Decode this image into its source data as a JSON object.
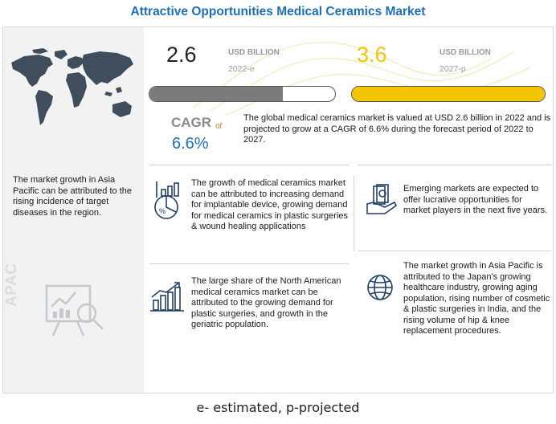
{
  "title": "Attractive Opportunities Medical Ceramics Market",
  "current": {
    "value": "2.6",
    "unit": "USD BILLION",
    "year": "2022-e",
    "bar_fill": 0.72
  },
  "projected": {
    "value": "3.6",
    "unit": "USD BILLION",
    "year": "2027-p",
    "bar_fill": 1.0
  },
  "cagr": {
    "label": "CAGR",
    "of_text": "of",
    "value": "6.6%"
  },
  "summary": "The global medical ceramics market is valued at USD 2.6 billion in 2022 and is projected to grow at a CAGR of 6.6% during the forecast period of 2022 to 2027.",
  "left_panel": {
    "note": "The market growth in Asia Pacific can be attributed to the rising incidence of target diseases in the region.",
    "region_label": "APAC"
  },
  "cards": [
    {
      "text": "The growth of medical ceramics market can be attributed to increasing demand for implantable device, growing demand for medical ceramics in plastic surgeries & wound healing applications",
      "icon": "growth-chart-icon"
    },
    {
      "text": "Emerging markets are expected to offer lucrative opportunities for market players in the next five years.",
      "icon": "money-hand-icon"
    },
    {
      "text": "The large share of the North American medical ceramics market can be attributed to the growing demand for plastic surgeries, and growth in the geriatric population.",
      "icon": "bar-chart-arrow-icon"
    },
    {
      "text": "The market growth in Asia Pacific is attributed to the Japan's growing healthcare industry, growing aging population, rising number of cosmetic & plastic surgeries in India, and the rising volume of hip & knee replacement procedures.",
      "icon": "globe-icon"
    }
  ],
  "footnote": "e- estimated, p-projected",
  "colors": {
    "title": "#1f6fb8",
    "accent_yellow": "#f5c400",
    "gray_bar": "#7b7b7b",
    "cagr_value": "#1f6fb8"
  }
}
